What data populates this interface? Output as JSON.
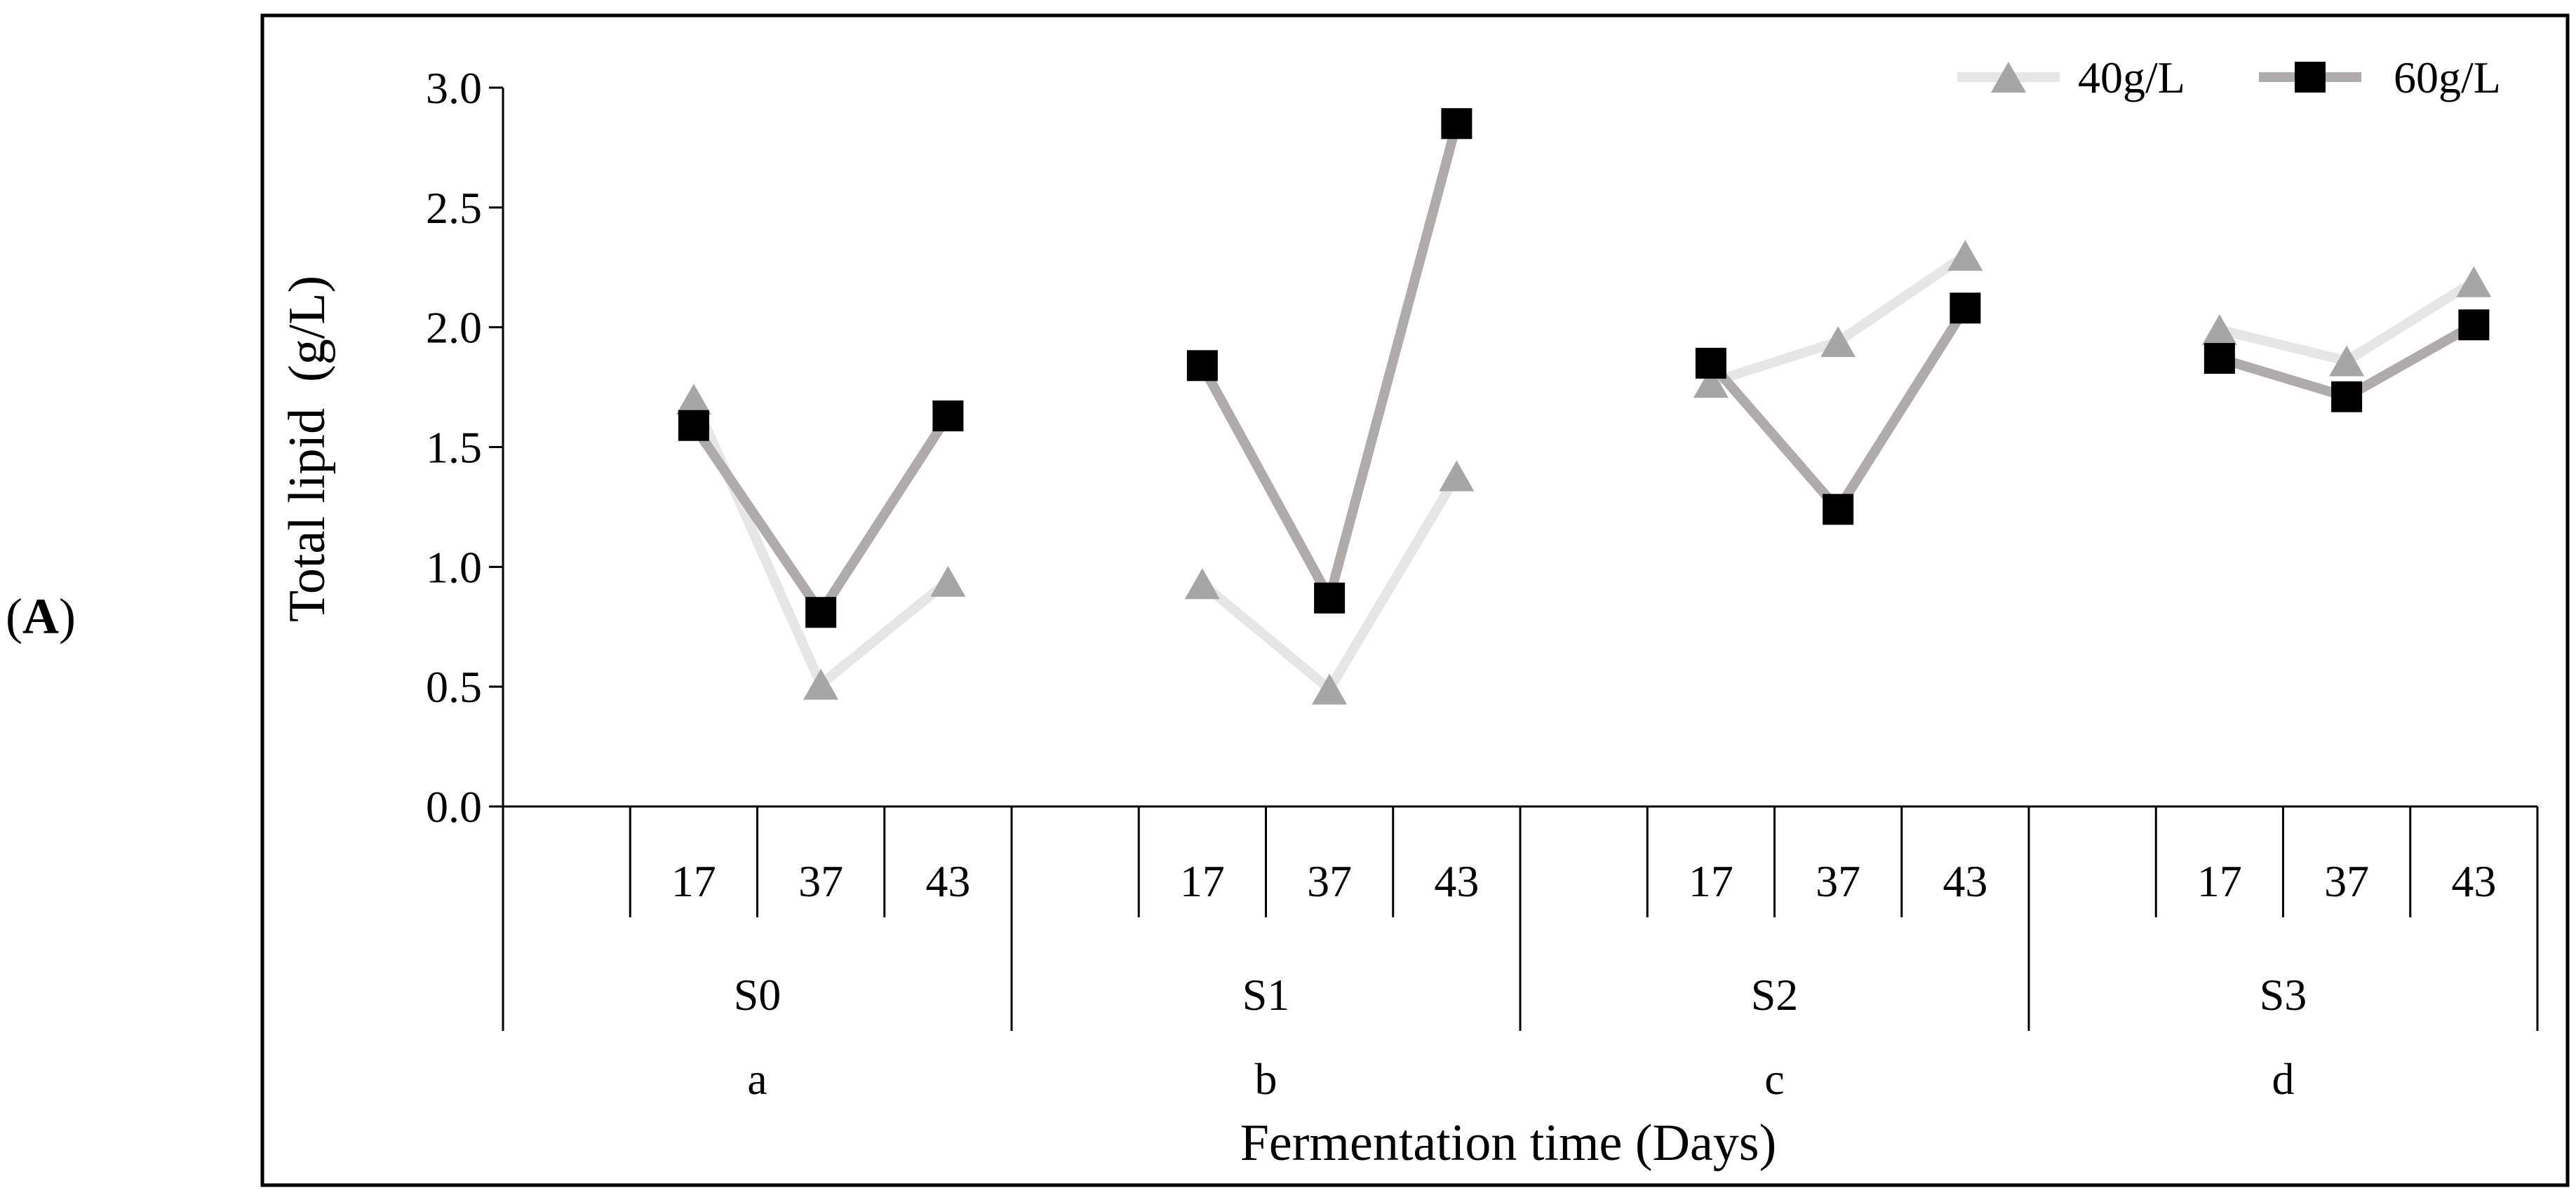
{
  "panel_label": {
    "open": "(",
    "letter": "A",
    "close": ")"
  },
  "chart_data": {
    "type": "line",
    "title": "",
    "xlabel": "Fermentation time (Days)",
    "ylabel": "Total lipid  (g/L)",
    "ylim": [
      0,
      3.0
    ],
    "yticks": [
      "0.0",
      "0.5",
      "1.0",
      "1.5",
      "2.0",
      "2.5",
      "3.0"
    ],
    "groups": [
      {
        "name": "S0",
        "sub": "a",
        "days": [
          "17",
          "37",
          "43"
        ]
      },
      {
        "name": "S1",
        "sub": "b",
        "days": [
          "17",
          "37",
          "43"
        ]
      },
      {
        "name": "S2",
        "sub": "c",
        "days": [
          "17",
          "37",
          "43"
        ]
      },
      {
        "name": "S3",
        "sub": "d",
        "days": [
          "17",
          "37",
          "43"
        ]
      }
    ],
    "series": [
      {
        "name": "40g/L",
        "marker": "triangle",
        "line_color": "#e6e6e6",
        "marker_color": "#a6a6a6",
        "values": [
          [
            1.7,
            0.51,
            0.94
          ],
          [
            0.93,
            0.49,
            1.38
          ],
          [
            1.77,
            1.94,
            2.3
          ],
          [
            1.99,
            1.86,
            2.19
          ]
        ]
      },
      {
        "name": "60g/L",
        "marker": "square",
        "line_color": "#afabab",
        "marker_color": "#000000",
        "values": [
          [
            1.59,
            0.81,
            1.63
          ],
          [
            1.84,
            0.87,
            2.85
          ],
          [
            1.85,
            1.24,
            2.08
          ],
          [
            1.87,
            1.71,
            2.01
          ]
        ]
      }
    ],
    "legend_position": "top-right",
    "grid": false
  }
}
